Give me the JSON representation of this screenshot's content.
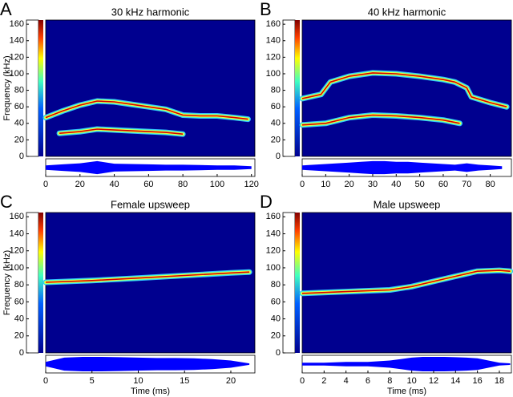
{
  "chart_data": [
    {
      "type": "spectrogram",
      "panel": "A",
      "title": "30 kHz harmonic",
      "ylabel": "Frequency (kHz)",
      "xlim": [
        0,
        122
      ],
      "xticks": [
        0,
        20,
        40,
        60,
        80,
        100,
        120
      ],
      "ylim": [
        0,
        165
      ],
      "yticks": [
        0,
        20,
        40,
        60,
        80,
        100,
        120,
        140,
        160
      ],
      "series": [
        {
          "color": "#d40000",
          "x": [
            0,
            10,
            20,
            30,
            40,
            50,
            60,
            70,
            80,
            90,
            100,
            110,
            118
          ],
          "values": [
            47,
            55,
            62,
            67,
            66,
            63,
            60,
            57,
            50,
            49,
            49,
            47,
            45
          ]
        },
        {
          "color": "#d40000",
          "x": [
            8,
            20,
            30,
            50,
            70,
            80
          ],
          "values": [
            28,
            30,
            33,
            31,
            29,
            27
          ]
        }
      ],
      "waveform": {
        "color": "#0000ff",
        "x": [
          0,
          10,
          20,
          30,
          40,
          50,
          60,
          70,
          80,
          90,
          100,
          110,
          120
        ],
        "values": [
          0.3,
          0.45,
          0.6,
          0.9,
          0.55,
          0.5,
          0.45,
          0.4,
          0.4,
          0.35,
          0.3,
          0.3,
          0.2
        ]
      }
    },
    {
      "type": "spectrogram",
      "panel": "B",
      "title": "40 kHz harmonic",
      "xlim": [
        0,
        89
      ],
      "xticks": [
        0,
        10,
        20,
        30,
        40,
        50,
        60,
        70,
        80
      ],
      "ylim": [
        0,
        165
      ],
      "yticks": [
        0,
        20,
        40,
        60,
        80,
        100,
        120,
        140,
        160
      ],
      "series": [
        {
          "color": "#d40000",
          "x": [
            0,
            8,
            12,
            20,
            30,
            40,
            50,
            60,
            65,
            70,
            72,
            80,
            87
          ],
          "values": [
            70,
            75,
            90,
            97,
            101,
            100,
            97,
            93,
            90,
            83,
            72,
            65,
            60
          ]
        },
        {
          "color": "#d40000",
          "x": [
            0,
            10,
            20,
            30,
            40,
            50,
            60,
            67
          ],
          "values": [
            38,
            40,
            47,
            50,
            49,
            47,
            44,
            40
          ]
        }
      ],
      "waveform": {
        "color": "#0000ff",
        "x": [
          0,
          5,
          10,
          15,
          20,
          25,
          30,
          35,
          40,
          45,
          50,
          55,
          60,
          65,
          70,
          75,
          80,
          85
        ],
        "values": [
          0.3,
          0.4,
          0.5,
          0.6,
          0.7,
          0.8,
          0.9,
          0.9,
          0.8,
          0.8,
          0.7,
          0.6,
          0.5,
          0.4,
          0.6,
          0.4,
          0.3,
          0.2
        ]
      }
    },
    {
      "type": "spectrogram",
      "panel": "C",
      "title": "Female upsweep",
      "ylabel": "Frequency (kHz)",
      "xlabel": "Time (ms)",
      "xlim": [
        0,
        22.6
      ],
      "xticks": [
        0,
        5,
        10,
        15,
        20
      ],
      "ylim": [
        0,
        165
      ],
      "yticks": [
        0,
        20,
        40,
        60,
        80,
        100,
        120,
        140,
        160
      ],
      "series": [
        {
          "color": "#d40000",
          "x": [
            0,
            5,
            10,
            15,
            20,
            22
          ],
          "values": [
            83,
            85,
            88,
            91,
            94,
            95
          ]
        }
      ],
      "waveform": {
        "color": "#0000ff",
        "x": [
          0,
          2,
          4,
          6,
          8,
          10,
          12,
          14,
          16,
          18,
          20,
          22
        ],
        "values": [
          0.3,
          0.9,
          1,
          1,
          0.95,
          0.9,
          0.85,
          0.85,
          0.8,
          0.7,
          0.5,
          0.1
        ]
      }
    },
    {
      "type": "spectrogram",
      "panel": "D",
      "title": "Male upsweep",
      "xlabel": "Time (ms)",
      "xlim": [
        0,
        19.1
      ],
      "xticks": [
        0,
        2,
        4,
        6,
        8,
        10,
        12,
        14,
        16,
        18
      ],
      "ylim": [
        0,
        165
      ],
      "yticks": [
        0,
        20,
        40,
        60,
        80,
        100,
        120,
        140,
        160
      ],
      "series": [
        {
          "color": "#d40000",
          "x": [
            0,
            4,
            8,
            10,
            12,
            14,
            16,
            18,
            19
          ],
          "values": [
            70,
            72,
            74,
            78,
            84,
            90,
            96,
            97,
            96
          ]
        }
      ],
      "waveform": {
        "color": "#0000ff",
        "x": [
          0,
          1,
          2,
          3,
          4,
          5,
          6,
          7,
          8,
          9,
          10,
          11,
          12,
          13,
          14,
          15,
          16,
          17,
          18,
          19
        ],
        "values": [
          0.2,
          0.2,
          0.2,
          0.25,
          0.3,
          0.3,
          0.3,
          0.4,
          0.5,
          0.7,
          0.9,
          1,
          1,
          1,
          0.95,
          0.9,
          0.8,
          0.5,
          0.2,
          0.1
        ]
      }
    }
  ]
}
